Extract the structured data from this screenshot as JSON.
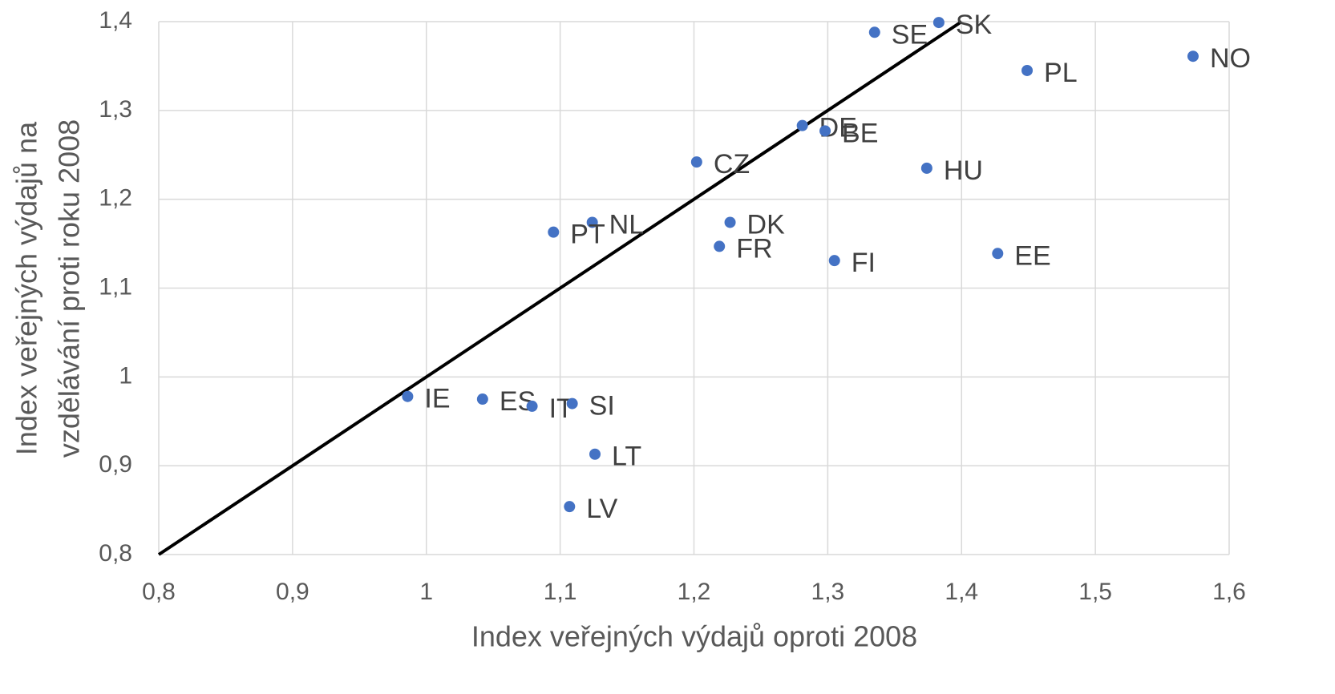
{
  "chart_data": {
    "type": "scatter",
    "xlabel": "Index veřejných výdajů oproti 2008",
    "ylabel": [
      "Index veřejných výdajů na",
      "vzdělávání proti roku 2008"
    ],
    "xlim": [
      0.8,
      1.6
    ],
    "ylim": [
      0.8,
      1.4
    ],
    "xticks": [
      {
        "value": 0.8,
        "label": "0,8"
      },
      {
        "value": 0.9,
        "label": "0,9"
      },
      1,
      {
        "value": 1.1,
        "label": "1,1"
      },
      {
        "value": 1.2,
        "label": "1,2"
      },
      {
        "value": 1.3,
        "label": "1,3"
      },
      {
        "value": 1.4,
        "label": "1,4"
      },
      {
        "value": 1.5,
        "label": "1,5"
      },
      {
        "value": 1.6,
        "label": "1,6"
      }
    ],
    "yticks": [
      {
        "value": 0.8,
        "label": "0,8"
      },
      {
        "value": 0.9,
        "label": "0,9"
      },
      1,
      {
        "value": 1.1,
        "label": "1,1"
      },
      {
        "value": 1.2,
        "label": "1,2"
      },
      {
        "value": 1.3,
        "label": "1,3"
      },
      {
        "value": 1.4,
        "label": "1,4"
      }
    ],
    "grid": true,
    "series": [
      {
        "color": "#4472c4",
        "labels": [
          "SE",
          "SK",
          "NO",
          "PL",
          "DE",
          "BE",
          "CZ",
          "HU",
          "NL",
          "DK",
          "PT",
          "FR",
          "FI",
          "EE",
          "IE",
          "ES",
          "IT",
          "SI",
          "LT",
          "LV"
        ],
        "x": [
          1.335,
          1.383,
          1.573,
          1.449,
          1.281,
          1.298,
          1.202,
          1.374,
          1.124,
          1.227,
          1.095,
          1.219,
          1.305,
          1.427,
          0.986,
          1.042,
          1.079,
          1.109,
          1.126,
          1.107
        ],
        "values": [
          1.388,
          1.399,
          1.361,
          1.345,
          1.283,
          1.277,
          1.242,
          1.235,
          1.174,
          1.174,
          1.163,
          1.147,
          1.131,
          1.139,
          0.978,
          0.975,
          0.967,
          0.97,
          0.913,
          0.854
        ]
      }
    ],
    "reference_line": {
      "color": "#000000",
      "x": [
        0.8,
        1.4
      ],
      "values": [
        0.8,
        1.4
      ]
    }
  }
}
